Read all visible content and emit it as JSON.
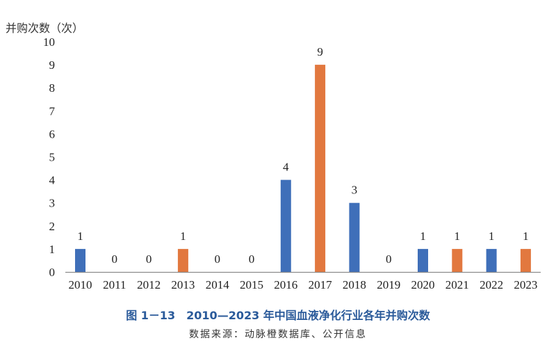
{
  "chart_data": {
    "type": "bar",
    "title": "图 1－13　2010—2023 年中国血液净化行业各年并购次数",
    "source": "数据来源：动脉橙数据库、公开信息",
    "xlabel": "",
    "ylabel": "并购次数（次）",
    "ylim": [
      0,
      10
    ],
    "yticks": [
      0,
      1,
      2,
      3,
      4,
      5,
      6,
      7,
      8,
      9,
      10
    ],
    "grid": false,
    "legend": "none",
    "categories": [
      "2010",
      "2011",
      "2012",
      "2013",
      "2014",
      "2015",
      "2016",
      "2017",
      "2018",
      "2019",
      "2020",
      "2021",
      "2022",
      "2023"
    ],
    "values": [
      1,
      0,
      0,
      1,
      0,
      0,
      4,
      9,
      3,
      0,
      1,
      1,
      1,
      1
    ],
    "bar_colors": [
      "#3F6FB9",
      "#3F6FB9",
      "#3F6FB9",
      "#E2783F",
      "#3F6FB9",
      "#3F6FB9",
      "#3F6FB9",
      "#E2783F",
      "#3F6FB9",
      "#3F6FB9",
      "#3F6FB9",
      "#E2783F",
      "#3F6FB9",
      "#E2783F"
    ],
    "data_labels": true
  },
  "labels": {
    "ylabel": "并购次数（次）",
    "caption": "图 1－13　2010—2023 年中国血液净化行业各年并购次数",
    "source": "数据来源：动脉橙数据库、公开信息"
  },
  "colors": {
    "blue": "#3F6FB9",
    "orange": "#E2783F",
    "axis": "#8c8c8c",
    "caption": "#2a5a9a"
  }
}
